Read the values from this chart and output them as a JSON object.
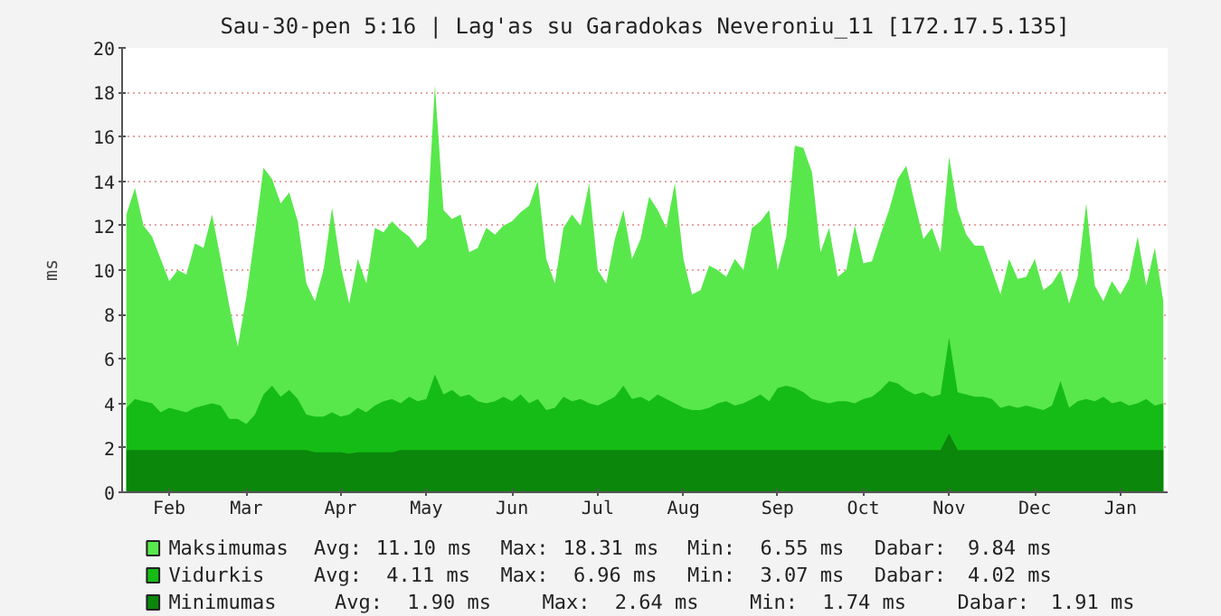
{
  "chart_data": {
    "type": "area",
    "title": "Sau-30-pen 5:16 | Lag'as su Garadokas Neveroniu_11 [172.17.5.135]",
    "ylabel": "ms",
    "categories": [
      null,
      null,
      null,
      null,
      null,
      "Feb",
      null,
      null,
      null,
      null,
      null,
      null,
      null,
      null,
      "Mar",
      null,
      null,
      null,
      null,
      null,
      null,
      null,
      null,
      null,
      null,
      "Apr",
      null,
      null,
      null,
      null,
      null,
      null,
      null,
      null,
      null,
      "May",
      null,
      null,
      null,
      null,
      null,
      null,
      null,
      null,
      null,
      "Jun",
      null,
      null,
      null,
      null,
      null,
      null,
      null,
      null,
      null,
      "Jul",
      null,
      null,
      null,
      null,
      null,
      null,
      null,
      null,
      null,
      "Aug",
      null,
      null,
      null,
      null,
      null,
      null,
      null,
      null,
      null,
      null,
      "Sep",
      null,
      null,
      null,
      null,
      null,
      null,
      null,
      null,
      null,
      "Oct",
      null,
      null,
      null,
      null,
      null,
      null,
      null,
      null,
      null,
      "Nov",
      null,
      null,
      null,
      null,
      null,
      null,
      null,
      null,
      null,
      "Dec",
      null,
      null,
      null,
      null,
      null,
      null,
      null,
      null,
      null,
      "Jan",
      null,
      null,
      null,
      null,
      null
    ],
    "series": [
      {
        "name": "Maksimumas",
        "color": "#58e84c",
        "values": [
          12.5,
          13.7,
          12.0,
          11.5,
          10.5,
          9.5,
          10.0,
          9.8,
          11.2,
          11.0,
          12.5,
          10.5,
          8.4,
          6.55,
          8.8,
          11.6,
          14.6,
          14.1,
          13.0,
          13.5,
          12.2,
          9.4,
          8.6,
          10.0,
          12.8,
          10.2,
          8.5,
          10.5,
          9.4,
          11.9,
          11.7,
          12.2,
          11.8,
          11.5,
          11.0,
          11.4,
          18.31,
          12.7,
          12.3,
          12.5,
          10.8,
          11.0,
          11.9,
          11.6,
          12.0,
          12.2,
          12.6,
          12.9,
          14.0,
          10.5,
          9.4,
          11.9,
          12.5,
          12.0,
          13.9,
          10.0,
          9.4,
          11.4,
          12.7,
          10.5,
          11.4,
          13.3,
          12.7,
          11.9,
          13.9,
          10.5,
          8.9,
          9.1,
          10.2,
          10.0,
          9.7,
          10.5,
          10.0,
          11.9,
          12.2,
          12.7,
          10.0,
          11.5,
          15.6,
          15.5,
          14.4,
          10.8,
          11.9,
          9.7,
          10.0,
          12.0,
          10.3,
          10.4,
          11.6,
          12.7,
          14.1,
          14.7,
          13.0,
          11.4,
          11.9,
          10.8,
          15.1,
          12.7,
          11.6,
          11.1,
          11.1,
          10.0,
          8.9,
          10.5,
          9.6,
          9.7,
          10.5,
          9.1,
          9.4,
          10.0,
          8.5,
          9.7,
          13.0,
          9.3,
          8.6,
          9.5,
          8.9,
          9.6,
          11.5,
          9.3,
          11.0,
          8.6
        ]
      },
      {
        "name": "Vidurkis",
        "color": "#16bc16",
        "values": [
          3.8,
          4.2,
          4.1,
          4.0,
          3.6,
          3.8,
          3.7,
          3.6,
          3.8,
          3.9,
          4.0,
          3.9,
          3.3,
          3.3,
          3.07,
          3.5,
          4.4,
          4.8,
          4.3,
          4.6,
          4.2,
          3.5,
          3.4,
          3.4,
          3.6,
          3.4,
          3.5,
          3.8,
          3.6,
          3.9,
          4.1,
          4.2,
          4.0,
          4.3,
          4.1,
          4.2,
          5.3,
          4.4,
          4.6,
          4.3,
          4.4,
          4.1,
          4.0,
          4.1,
          4.3,
          4.1,
          4.4,
          4.0,
          4.2,
          3.7,
          3.8,
          4.3,
          4.1,
          4.2,
          4.0,
          3.9,
          4.1,
          4.3,
          4.8,
          4.2,
          4.3,
          4.1,
          4.4,
          4.2,
          4.0,
          3.8,
          3.7,
          3.7,
          3.8,
          4.0,
          4.1,
          3.9,
          4.0,
          4.2,
          4.4,
          4.1,
          4.7,
          4.8,
          4.7,
          4.5,
          4.2,
          4.1,
          4.0,
          4.1,
          4.1,
          4.0,
          4.2,
          4.3,
          4.6,
          5.0,
          4.9,
          4.6,
          4.4,
          4.5,
          4.3,
          4.4,
          6.96,
          4.5,
          4.4,
          4.3,
          4.3,
          4.2,
          3.8,
          3.9,
          3.8,
          3.9,
          3.8,
          3.7,
          3.9,
          5.0,
          3.8,
          4.1,
          4.2,
          4.1,
          4.3,
          4.0,
          4.1,
          3.9,
          4.0,
          4.2,
          3.9,
          4.0
        ]
      },
      {
        "name": "Minimumas",
        "color": "#0b870b",
        "values": [
          1.9,
          1.9,
          1.9,
          1.9,
          1.9,
          1.9,
          1.9,
          1.9,
          1.9,
          1.9,
          1.9,
          1.9,
          1.9,
          1.9,
          1.9,
          1.9,
          1.9,
          1.9,
          1.9,
          1.9,
          1.9,
          1.9,
          1.8,
          1.8,
          1.8,
          1.8,
          1.74,
          1.8,
          1.8,
          1.8,
          1.8,
          1.8,
          1.9,
          1.9,
          1.9,
          1.9,
          1.9,
          1.9,
          1.9,
          1.9,
          1.9,
          1.9,
          1.9,
          1.9,
          1.9,
          1.9,
          1.9,
          1.9,
          1.9,
          1.9,
          1.9,
          1.9,
          1.9,
          1.9,
          1.9,
          1.9,
          1.9,
          1.9,
          1.9,
          1.9,
          1.9,
          1.9,
          1.9,
          1.9,
          1.9,
          1.9,
          1.9,
          1.9,
          1.9,
          1.9,
          1.9,
          1.9,
          1.9,
          1.9,
          1.9,
          1.9,
          1.9,
          1.9,
          1.9,
          1.9,
          1.9,
          1.9,
          1.9,
          1.9,
          1.9,
          1.9,
          1.9,
          1.9,
          1.9,
          1.9,
          1.9,
          1.9,
          1.9,
          1.9,
          1.9,
          1.9,
          2.64,
          1.9,
          1.9,
          1.9,
          1.9,
          1.9,
          1.9,
          1.9,
          1.9,
          1.9,
          1.9,
          1.9,
          1.9,
          1.9,
          1.9,
          1.9,
          1.9,
          1.9,
          1.9,
          1.9,
          1.9,
          1.9,
          1.9,
          1.9,
          1.9,
          1.9
        ]
      }
    ],
    "ylim": [
      0,
      20
    ],
    "yticks": [
      0,
      2,
      4,
      6,
      8,
      10,
      12,
      14,
      16,
      18,
      20
    ],
    "grid": "y",
    "legend": "bottom",
    "annotations": [
      "Avg:  11.10 ms    Max:  18.31 ms    Min:   6.55 ms    Dabar:   9.84 ms",
      "Avg:   4.11 ms    Max:   6.96 ms    Min:   3.07 ms    Dabar:   4.02 ms",
      "  Avg:   1.90 ms      Max:   2.64 ms      Min:   1.74 ms      Dabar:   1.91 ms"
    ]
  }
}
